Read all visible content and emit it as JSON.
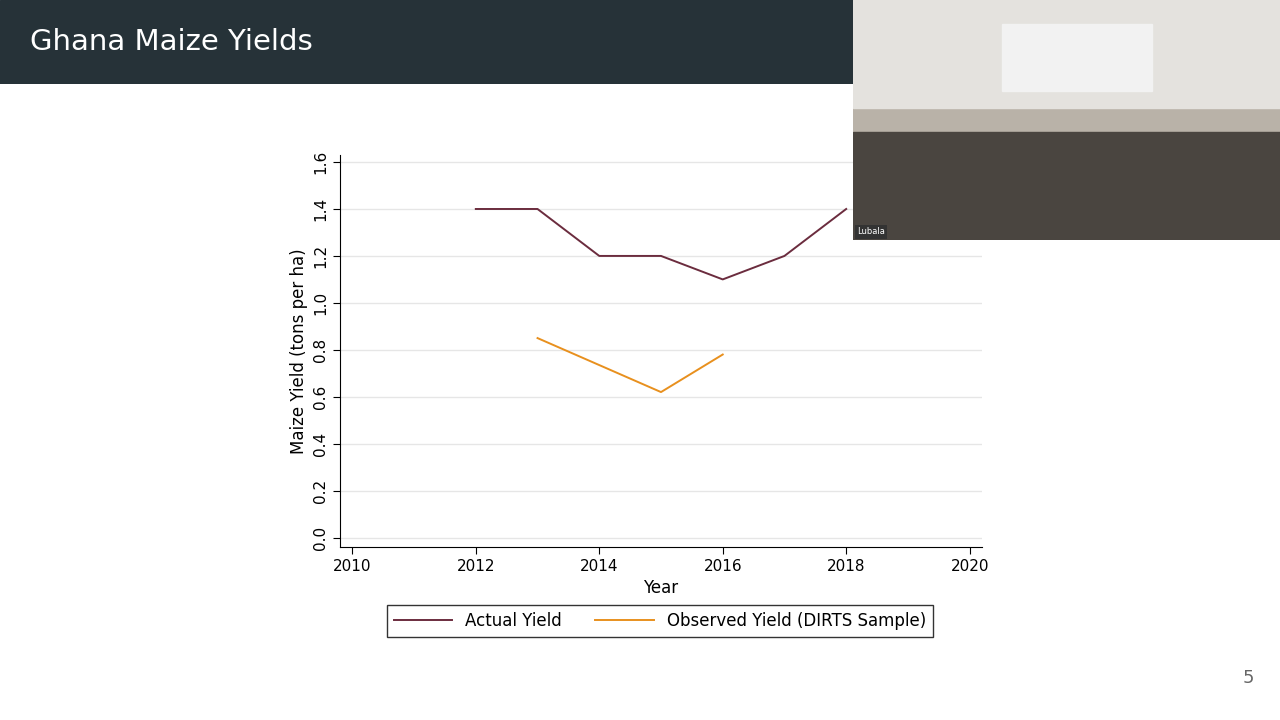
{
  "slide": {
    "title": "Ghana Maize Yields",
    "page_number": "5",
    "video_overlay": {
      "label": "Lubala"
    }
  },
  "chart_data": {
    "type": "line",
    "x_label": "Year",
    "y_label": "Maize Yield (tons per ha)",
    "series": [
      {
        "name": "Actual Yield",
        "color": "#6b2c3e",
        "x": [
          2012,
          2013,
          2014,
          2015,
          2016,
          2017,
          2018
        ],
        "values": [
          1.4,
          1.4,
          1.2,
          1.2,
          1.1,
          1.2,
          1.4
        ]
      },
      {
        "name": "Observed Yield (DIRTS Sample)",
        "color": "#e8901e",
        "x": [
          2013,
          2015,
          2016
        ],
        "values": [
          0.85,
          0.62,
          0.78
        ]
      }
    ],
    "xlim": [
      2009.8,
      2020.2
    ],
    "xticks": [
      2010,
      2012,
      2014,
      2016,
      2018,
      2020
    ],
    "ylim": [
      -0.04,
      1.63
    ],
    "yticks": [
      {
        "value": 0,
        "label": "0.0"
      },
      {
        "value": 0.2,
        "label": "0.2"
      },
      {
        "value": 0.4,
        "label": "0.4"
      },
      {
        "value": 0.6,
        "label": "0.6"
      },
      {
        "value": 0.8,
        "label": "0.8"
      },
      {
        "value": 1.0,
        "label": "1.0"
      },
      {
        "value": 1.2,
        "label": "1.2"
      },
      {
        "value": 1.4,
        "label": "1.4"
      },
      {
        "value": 1.6,
        "label": "1.6"
      }
    ],
    "grid": true,
    "legend": "bottom"
  }
}
